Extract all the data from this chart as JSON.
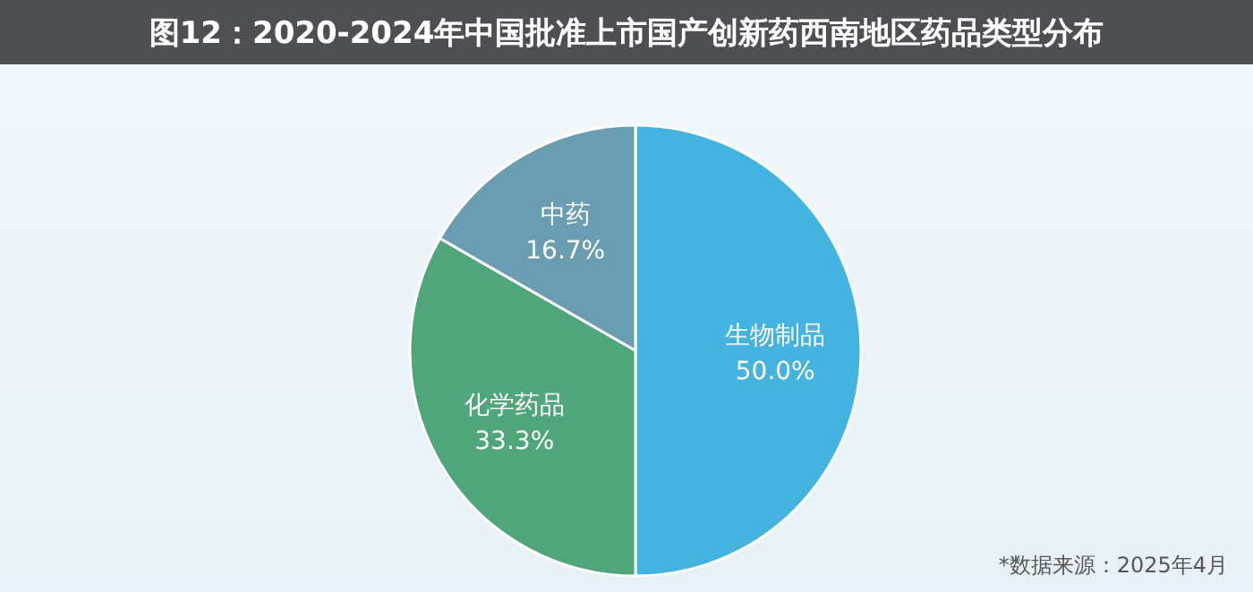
{
  "chart_data": {
    "type": "pie",
    "title": "图12：2020-2024年中国批准上市国产创新药西南地区药品类型分布",
    "categories": [
      "生物制品",
      "化学药品",
      "中药"
    ],
    "values": [
      50,
      33.3,
      16.7
    ],
    "value_labels": [
      "50.0%",
      "33.3%",
      "16.7%"
    ],
    "colors": [
      "#45b3e0",
      "#4ea67a",
      "#6b9db2"
    ],
    "annotations": [
      "*数据来源：2025年4月"
    ]
  }
}
